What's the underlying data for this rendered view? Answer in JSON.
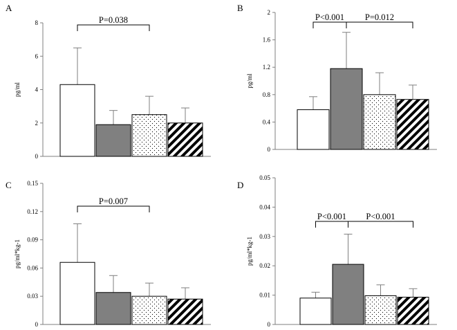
{
  "chart_data": [
    {
      "panel": "A",
      "type": "bar",
      "ylabel": "pg/ml",
      "ylim": [
        0,
        8
      ],
      "yticks": [
        0,
        2,
        4,
        6,
        8
      ],
      "tick_labels": [
        "0",
        "2",
        "4",
        "6",
        "8"
      ],
      "bar_fills": [
        "white",
        "gray",
        "dots",
        "stripes"
      ],
      "values": [
        4.3,
        1.9,
        2.5,
        2.0
      ],
      "errors": [
        2.2,
        0.85,
        1.1,
        0.9
      ],
      "brackets": [
        {
          "from": 0,
          "to": 2,
          "label": "P=0.038"
        }
      ]
    },
    {
      "panel": "B",
      "type": "bar",
      "ylabel": "pg/ml",
      "ylim": [
        0,
        2
      ],
      "yticks": [
        0,
        0.4,
        0.8,
        1.2,
        1.6,
        2
      ],
      "tick_labels": [
        "0",
        "0.4",
        "0.8",
        "1.2",
        "1.6",
        "2"
      ],
      "bar_fills": [
        "white",
        "gray",
        "dots",
        "stripes"
      ],
      "values": [
        0.58,
        1.18,
        0.8,
        0.73
      ],
      "errors": [
        0.19,
        0.53,
        0.32,
        0.21
      ],
      "brackets": [
        {
          "from": 0,
          "to": 1,
          "label": "P<0.001"
        },
        {
          "from": 1,
          "to": 3,
          "label": "P=0.012"
        }
      ]
    },
    {
      "panel": "C",
      "type": "bar",
      "ylabel": "pg/ml*kg-1",
      "ylim": [
        0,
        0.15
      ],
      "yticks": [
        0,
        0.03,
        0.06,
        0.09,
        0.12,
        0.15
      ],
      "tick_labels": [
        "0",
        "0.03",
        "0.06",
        "0.09",
        "0.12",
        "0.15"
      ],
      "bar_fills": [
        "white",
        "gray",
        "dots",
        "stripes"
      ],
      "values": [
        0.066,
        0.034,
        0.03,
        0.027
      ],
      "errors": [
        0.041,
        0.018,
        0.014,
        0.012
      ],
      "brackets": [
        {
          "from": 0,
          "to": 2,
          "label": "P=0.007"
        }
      ]
    },
    {
      "panel": "D",
      "type": "bar",
      "ylabel": "pg/ml*kg-1",
      "ylim": [
        0,
        0.05
      ],
      "yticks": [
        0,
        0.01,
        0.02,
        0.03,
        0.04,
        0.05
      ],
      "tick_labels": [
        "0",
        "0.01",
        "0.02",
        "0.03",
        "0.04",
        "0.05"
      ],
      "bar_fills": [
        "white",
        "gray",
        "dots",
        "stripes"
      ],
      "values": [
        0.009,
        0.0205,
        0.0098,
        0.0093
      ],
      "errors": [
        0.002,
        0.0103,
        0.0037,
        0.0029
      ],
      "brackets": [
        {
          "from": 0,
          "to": 1,
          "label": "P<0.001"
        },
        {
          "from": 1,
          "to": 3,
          "label": "P<0.001"
        }
      ]
    }
  ],
  "colors": {
    "gray_bar": "#808080",
    "axis": "#7f7f7f",
    "outline": "#000000"
  }
}
